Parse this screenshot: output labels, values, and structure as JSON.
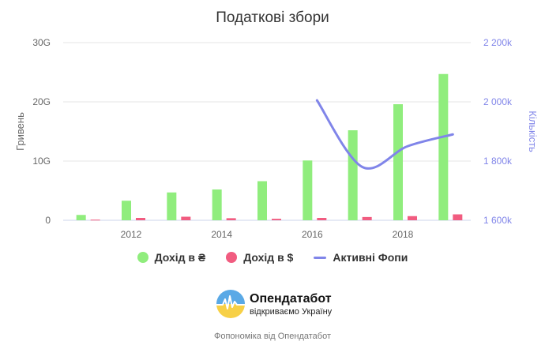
{
  "chart_data": {
    "type": "bar",
    "title": "Податкові збори",
    "x": [
      2011,
      2012,
      2013,
      2014,
      2015,
      2016,
      2017,
      2018,
      2019
    ],
    "x_ticks": [
      "2012",
      "2014",
      "2016",
      "2018"
    ],
    "x_tick_values": [
      2012,
      2014,
      2016,
      2018
    ],
    "ylabel": "Гривень",
    "y2label": "Кількість",
    "ylim": [
      0,
      30
    ],
    "y_ticks": [
      "0",
      "10G",
      "20G",
      "30G"
    ],
    "y2lim": [
      1600,
      2200
    ],
    "y2_ticks": [
      "1 600k",
      "1 800k",
      "2 000k",
      "2 200k"
    ],
    "series": [
      {
        "name": "Дохід в ₴",
        "type": "bar",
        "axis": "left",
        "color": "#90ed7d",
        "values": [
          0.9,
          3.3,
          4.7,
          5.2,
          6.6,
          10.1,
          15.2,
          19.6,
          24.7
        ]
      },
      {
        "name": "Дохід в $",
        "type": "bar",
        "axis": "left",
        "color": "#f15c80",
        "values": [
          0.1,
          0.4,
          0.6,
          0.35,
          0.25,
          0.4,
          0.55,
          0.7,
          1.0
        ]
      },
      {
        "name": "Активні Фопи",
        "type": "line",
        "axis": "right",
        "color": "#8085e9",
        "x": [
          2016,
          2017,
          2018,
          2019
        ],
        "values": [
          2005,
          1780,
          1850,
          1890
        ]
      }
    ],
    "grid": true,
    "legend_position": "bottom"
  },
  "legend": {
    "items": [
      {
        "label": "Дохід в ₴",
        "color": "#90ed7d"
      },
      {
        "label": "Дохід в $",
        "color": "#f15c80"
      },
      {
        "label": "Активні Фопи",
        "color": "#8085e9"
      }
    ]
  },
  "logo": {
    "name": "Опендатабот",
    "tagline": "відкриваємо Україну",
    "icon": "opendatabot-logo-icon"
  },
  "credit": "Фопономіка від Опендатабот"
}
